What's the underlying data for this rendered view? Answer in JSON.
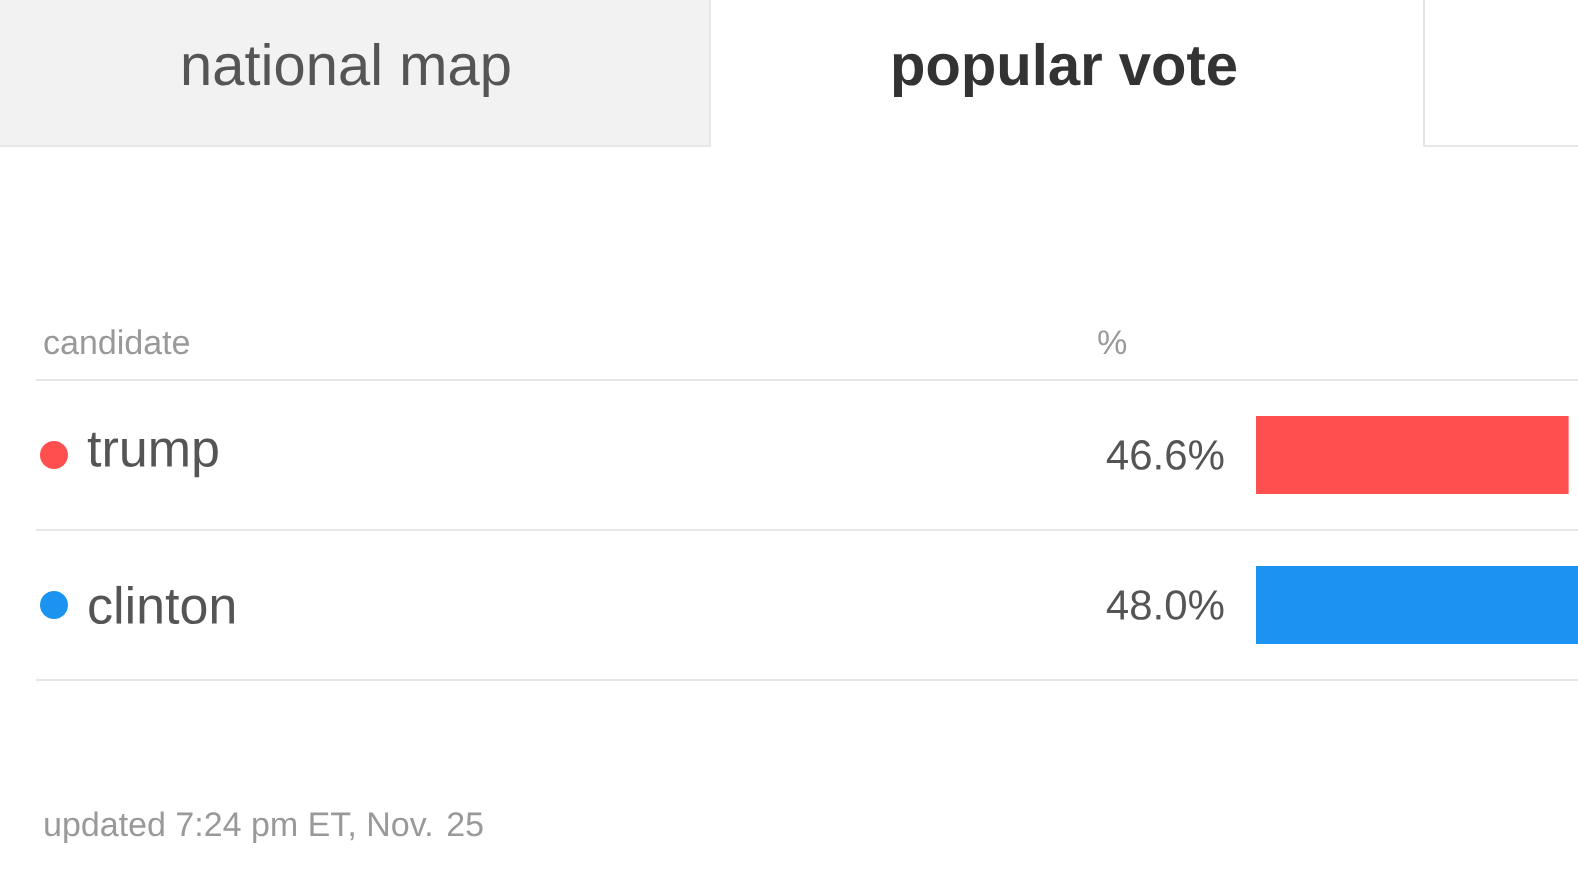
{
  "chart_data": {
    "type": "bar",
    "orientation": "horizontal",
    "title": "popular vote",
    "xlabel": "%",
    "ylabel": "candidate",
    "categories": [
      "trump",
      "clinton"
    ],
    "values": [
      46.6,
      48.0
    ],
    "colors": [
      "#ff4f4f",
      "#1a94f0"
    ],
    "value_labels": [
      "46.6%",
      "48.0%"
    ],
    "xlim": [
      0,
      48
    ],
    "annotations": [
      "national map",
      "updated 7:24 pm ET, Nov. 25"
    ]
  }
}
